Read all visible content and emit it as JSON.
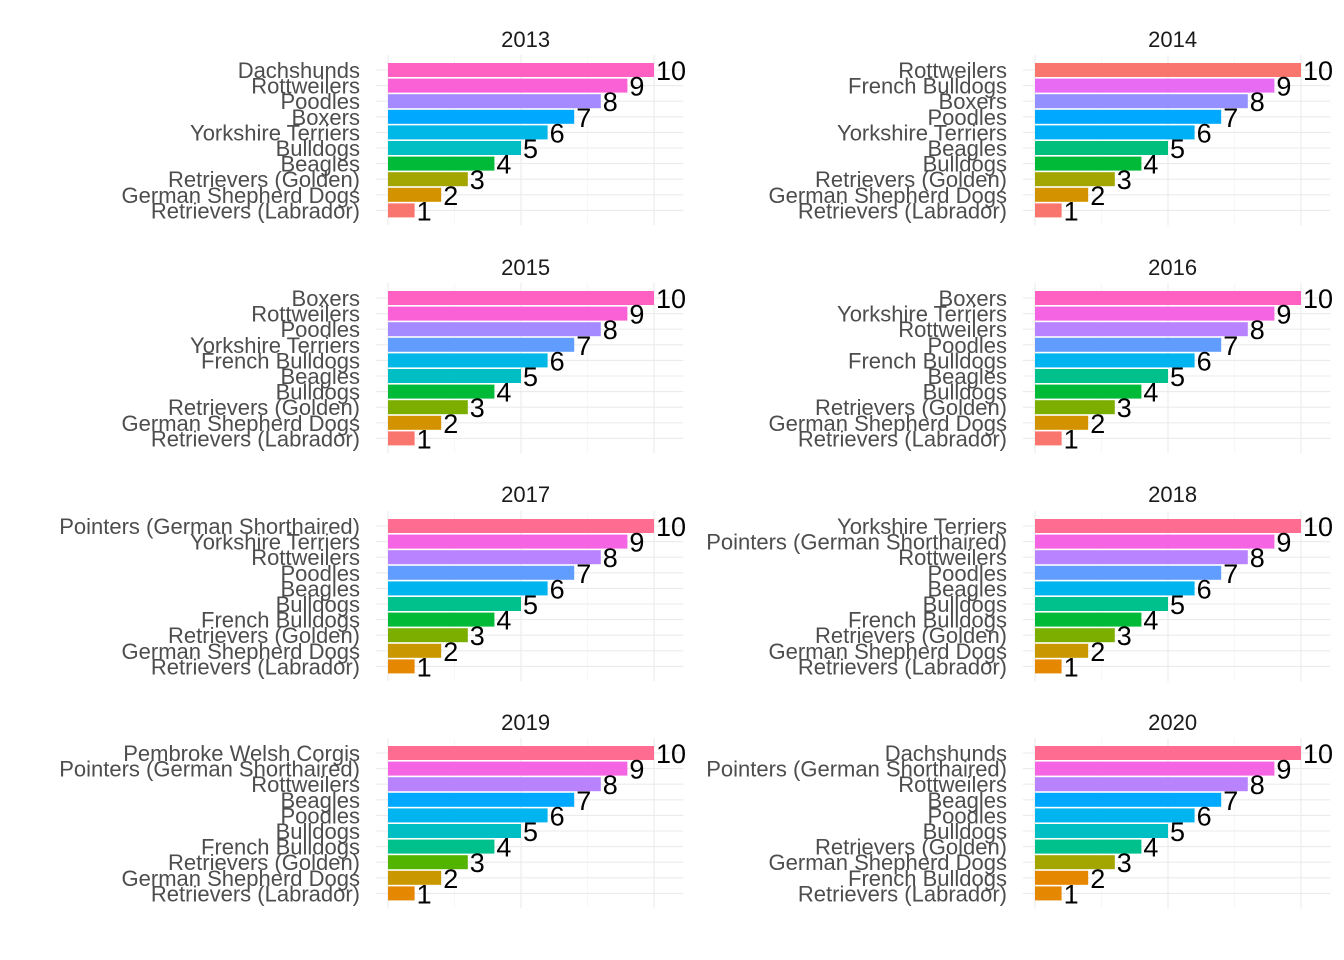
{
  "chart_data": [
    {
      "type": "bar",
      "title": "2013",
      "orientation": "horizontal",
      "xlim": [
        0,
        10.5
      ],
      "categories": [
        "Dachshunds",
        "Rottweilers",
        "Poodles",
        "Boxers",
        "Yorkshire Terriers",
        "Bulldogs",
        "Beagles",
        "Retrievers (Golden)",
        "German Shepherd Dogs",
        "Retrievers (Labrador)"
      ],
      "values": [
        10,
        9,
        8,
        7,
        6,
        5,
        4,
        3,
        2,
        1
      ],
      "labels": [
        "10",
        "9",
        "8",
        "7",
        "6",
        "5",
        "4",
        "3",
        "2",
        "1"
      ],
      "colors": [
        "#FF61C3",
        "#FB61D7",
        "#A58AFF",
        "#00A9FF",
        "#00B8E7",
        "#00BFC4",
        "#00BA38",
        "#A3A500",
        "#D39200",
        "#F8766D"
      ]
    },
    {
      "type": "bar",
      "title": "2014",
      "orientation": "horizontal",
      "xlim": [
        0,
        10.5
      ],
      "categories": [
        "Rottweilers",
        "French Bulldogs",
        "Boxers",
        "Poodles",
        "Yorkshire Terriers",
        "Beagles",
        "Bulldogs",
        "Retrievers (Golden)",
        "German Shepherd Dogs",
        "Retrievers (Labrador)"
      ],
      "values": [
        10,
        9,
        8,
        7,
        6,
        5,
        4,
        3,
        2,
        1
      ],
      "labels": [
        "10",
        "9",
        "8",
        "7",
        "6",
        "5",
        "4",
        "3",
        "2",
        "1"
      ],
      "colors": [
        "#F8766D",
        "#E76BF3",
        "#9590FF",
        "#00A9FF",
        "#00B0F6",
        "#00BF7D",
        "#00BA38",
        "#A3A500",
        "#D39200",
        "#F8766D"
      ]
    },
    {
      "type": "bar",
      "title": "2015",
      "orientation": "horizontal",
      "xlim": [
        0,
        10.5
      ],
      "categories": [
        "Boxers",
        "Rottweilers",
        "Poodles",
        "Yorkshire Terriers",
        "French Bulldogs",
        "Beagles",
        "Bulldogs",
        "Retrievers (Golden)",
        "German Shepherd Dogs",
        "Retrievers (Labrador)"
      ],
      "values": [
        10,
        9,
        8,
        7,
        6,
        5,
        4,
        3,
        2,
        1
      ],
      "labels": [
        "10",
        "9",
        "8",
        "7",
        "6",
        "5",
        "4",
        "3",
        "2",
        "1"
      ],
      "colors": [
        "#FF61C3",
        "#FB61D7",
        "#A58AFF",
        "#619CFF",
        "#00B8E7",
        "#00BFC4",
        "#00BA38",
        "#7CAE00",
        "#D39200",
        "#F8766D"
      ]
    },
    {
      "type": "bar",
      "title": "2016",
      "orientation": "horizontal",
      "xlim": [
        0,
        10.5
      ],
      "categories": [
        "Boxers",
        "Yorkshire Terriers",
        "Rottweilers",
        "Poodles",
        "French Bulldogs",
        "Beagles",
        "Bulldogs",
        "Retrievers (Golden)",
        "German Shepherd Dogs",
        "Retrievers (Labrador)"
      ],
      "values": [
        10,
        9,
        8,
        7,
        6,
        5,
        4,
        3,
        2,
        1
      ],
      "labels": [
        "10",
        "9",
        "8",
        "7",
        "6",
        "5",
        "4",
        "3",
        "2",
        "1"
      ],
      "colors": [
        "#FF61C3",
        "#F564E3",
        "#B983FF",
        "#619CFF",
        "#00B4F0",
        "#00C08B",
        "#00BA38",
        "#7CAE00",
        "#D39200",
        "#F8766D"
      ]
    },
    {
      "type": "bar",
      "title": "2017",
      "orientation": "horizontal",
      "xlim": [
        0,
        10.5
      ],
      "categories": [
        "Pointers (German Shorthaired)",
        "Yorkshire Terriers",
        "Rottweilers",
        "Poodles",
        "Beagles",
        "Bulldogs",
        "French Bulldogs",
        "Retrievers (Golden)",
        "German Shepherd Dogs",
        "Retrievers (Labrador)"
      ],
      "values": [
        10,
        9,
        8,
        7,
        6,
        5,
        4,
        3,
        2,
        1
      ],
      "labels": [
        "10",
        "9",
        "8",
        "7",
        "6",
        "5",
        "4",
        "3",
        "2",
        "1"
      ],
      "colors": [
        "#FF6C91",
        "#F564E3",
        "#B983FF",
        "#619CFF",
        "#00B4F0",
        "#00C08B",
        "#00BA38",
        "#7CAE00",
        "#C99800",
        "#E58700"
      ]
    },
    {
      "type": "bar",
      "title": "2018",
      "orientation": "horizontal",
      "xlim": [
        0,
        10.5
      ],
      "categories": [
        "Yorkshire Terriers",
        "Pointers (German Shorthaired)",
        "Rottweilers",
        "Poodles",
        "Beagles",
        "Bulldogs",
        "French Bulldogs",
        "Retrievers (Golden)",
        "German Shepherd Dogs",
        "Retrievers (Labrador)"
      ],
      "values": [
        10,
        9,
        8,
        7,
        6,
        5,
        4,
        3,
        2,
        1
      ],
      "labels": [
        "10",
        "9",
        "8",
        "7",
        "6",
        "5",
        "4",
        "3",
        "2",
        "1"
      ],
      "colors": [
        "#FF6C91",
        "#F564E3",
        "#B983FF",
        "#619CFF",
        "#00B4F0",
        "#00C08B",
        "#00BA38",
        "#7CAE00",
        "#C99800",
        "#E58700"
      ]
    },
    {
      "type": "bar",
      "title": "2019",
      "orientation": "horizontal",
      "xlim": [
        0,
        10.5
      ],
      "categories": [
        "Pembroke Welsh Corgis",
        "Pointers (German Shorthaired)",
        "Rottweilers",
        "Beagles",
        "Poodles",
        "Bulldogs",
        "French Bulldogs",
        "Retrievers (Golden)",
        "German Shepherd Dogs",
        "Retrievers (Labrador)"
      ],
      "values": [
        10,
        9,
        8,
        7,
        6,
        5,
        4,
        3,
        2,
        1
      ],
      "labels": [
        "10",
        "9",
        "8",
        "7",
        "6",
        "5",
        "4",
        "3",
        "2",
        "1"
      ],
      "colors": [
        "#FF6C91",
        "#F564E3",
        "#B983FF",
        "#00A9FF",
        "#00B4F0",
        "#00BFC4",
        "#00C08B",
        "#53B400",
        "#C99800",
        "#E58700"
      ]
    },
    {
      "type": "bar",
      "title": "2020",
      "orientation": "horizontal",
      "xlim": [
        0,
        10.5
      ],
      "categories": [
        "Dachshunds",
        "Pointers (German Shorthaired)",
        "Rottweilers",
        "Beagles",
        "Poodles",
        "Bulldogs",
        "Retrievers (Golden)",
        "German Shepherd Dogs",
        "French Bulldogs",
        "Retrievers (Labrador)"
      ],
      "values": [
        10,
        9,
        8,
        7,
        6,
        5,
        4,
        3,
        2,
        1
      ],
      "labels": [
        "10",
        "9",
        "8",
        "7",
        "6",
        "5",
        "4",
        "3",
        "2",
        "1"
      ],
      "colors": [
        "#FF6C91",
        "#F564E3",
        "#B983FF",
        "#00A9FF",
        "#00B4F0",
        "#00BFC4",
        "#00C08B",
        "#A3A500",
        "#E58700",
        "#E58700"
      ]
    }
  ]
}
